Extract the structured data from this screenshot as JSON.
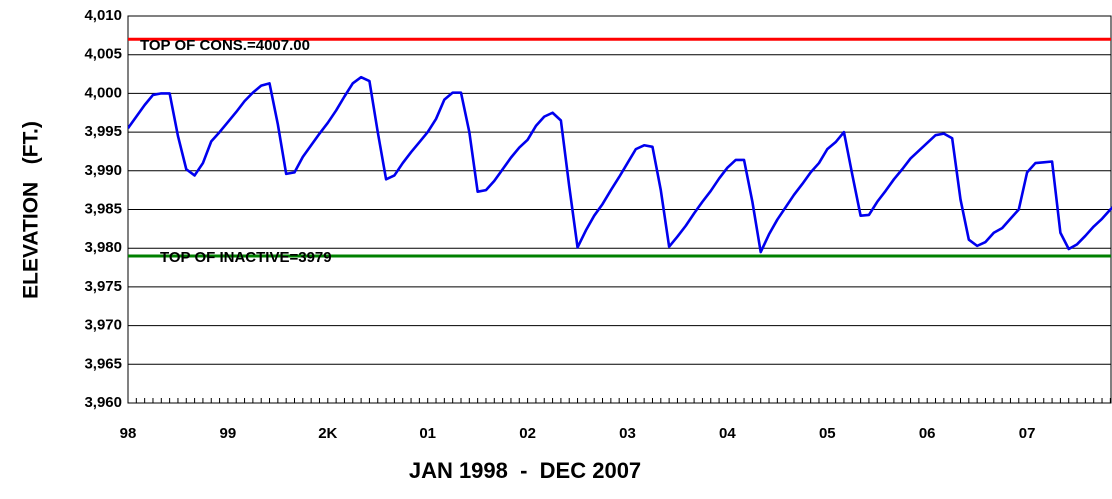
{
  "chart_data": {
    "type": "line",
    "x_axis_label": "JAN 1998  -  DEC 2007",
    "y_axis_label": "ELEVATION   (FT.)",
    "categories": [
      "98",
      null,
      null,
      null,
      null,
      null,
      null,
      null,
      null,
      null,
      null,
      null,
      "99",
      null,
      null,
      null,
      null,
      null,
      null,
      null,
      null,
      null,
      null,
      null,
      "2K",
      null,
      null,
      null,
      null,
      null,
      null,
      null,
      null,
      null,
      null,
      null,
      "01",
      null,
      null,
      null,
      null,
      null,
      null,
      null,
      null,
      null,
      null,
      null,
      "02",
      null,
      null,
      null,
      null,
      null,
      null,
      null,
      null,
      null,
      null,
      null,
      "03",
      null,
      null,
      null,
      null,
      null,
      null,
      null,
      null,
      null,
      null,
      null,
      "04",
      null,
      null,
      null,
      null,
      null,
      null,
      null,
      null,
      null,
      null,
      null,
      "05",
      null,
      null,
      null,
      null,
      null,
      null,
      null,
      null,
      null,
      null,
      null,
      "06",
      null,
      null,
      null,
      null,
      null,
      null,
      null,
      null,
      null,
      null,
      null,
      "07",
      null,
      null,
      null,
      null,
      null,
      null,
      null,
      null,
      null,
      null,
      null
    ],
    "series": [
      {
        "name": "Elevation",
        "color": "#0000ee",
        "values": [
          3995.5,
          3997,
          3998.5,
          3999.8,
          4000,
          4000,
          3994.5,
          3990.2,
          3989.4,
          3991,
          3993.8,
          3995,
          3996.3,
          3997.6,
          3999,
          4000.1,
          4001,
          4001.3,
          3996,
          3989.6,
          3989.8,
          3991.8,
          3993.3,
          3994.8,
          3996.2,
          3997.8,
          3999.6,
          4001.3,
          4002.1,
          4001.6,
          3995,
          3988.9,
          3989.4,
          3991,
          3992.4,
          3993.7,
          3995,
          3996.7,
          3999.2,
          4000.1,
          4000.1,
          3995,
          3987.3,
          3987.5,
          3988.7,
          3990.2,
          3991.7,
          3993,
          3994,
          3995.8,
          3997,
          3997.5,
          3996.5,
          3988,
          3980.1,
          3982.3,
          3984.2,
          3985.7,
          3987.5,
          3989.2,
          3991,
          3992.8,
          3993.3,
          3993.1,
          3987.5,
          3980.2,
          3981.5,
          3982.9,
          3984.5,
          3986,
          3987.4,
          3989,
          3990.4,
          3991.4,
          3991.4,
          3986,
          3979.5,
          3981.8,
          3983.7,
          3985.3,
          3986.9,
          3988.3,
          3989.8,
          3991,
          3992.8,
          3993.7,
          3995,
          3989.5,
          3984.2,
          3984.3,
          3986,
          3987.4,
          3988.9,
          3990.2,
          3991.6,
          3992.6,
          3993.6,
          3994.6,
          3994.8,
          3994.2,
          3986.3,
          3981.1,
          3980.3,
          3980.8,
          3982,
          3982.6,
          3983.8,
          3985,
          3989.8,
          3991,
          3991.1,
          3991.2,
          3982,
          3979.9,
          3980.5,
          3981.6,
          3982.8,
          3983.8,
          3985,
          3986
        ]
      }
    ],
    "reference_lines": [
      {
        "label": "TOP OF CONS.=4007.00",
        "value": 4007,
        "color": "#ff0000"
      },
      {
        "label": "TOP OF INACTIVE=3979",
        "value": 3979,
        "color": "#008000"
      }
    ],
    "ylim": [
      3960,
      4010
    ],
    "yticks": [
      {
        "value": 3960,
        "label": "3,960"
      },
      {
        "value": 3965,
        "label": "3,965"
      },
      {
        "value": 3970,
        "label": "3,970"
      },
      {
        "value": 3975,
        "label": "3,975"
      },
      {
        "value": 3980,
        "label": "3,980"
      },
      {
        "value": 3985,
        "label": "3,985"
      },
      {
        "value": 3990,
        "label": "3,990"
      },
      {
        "value": 3995,
        "label": "3,995"
      },
      {
        "value": 4000,
        "label": "4,000"
      },
      {
        "value": 4005,
        "label": "4,005"
      },
      {
        "value": 4010,
        "label": "4,010"
      }
    ],
    "grid": true
  }
}
